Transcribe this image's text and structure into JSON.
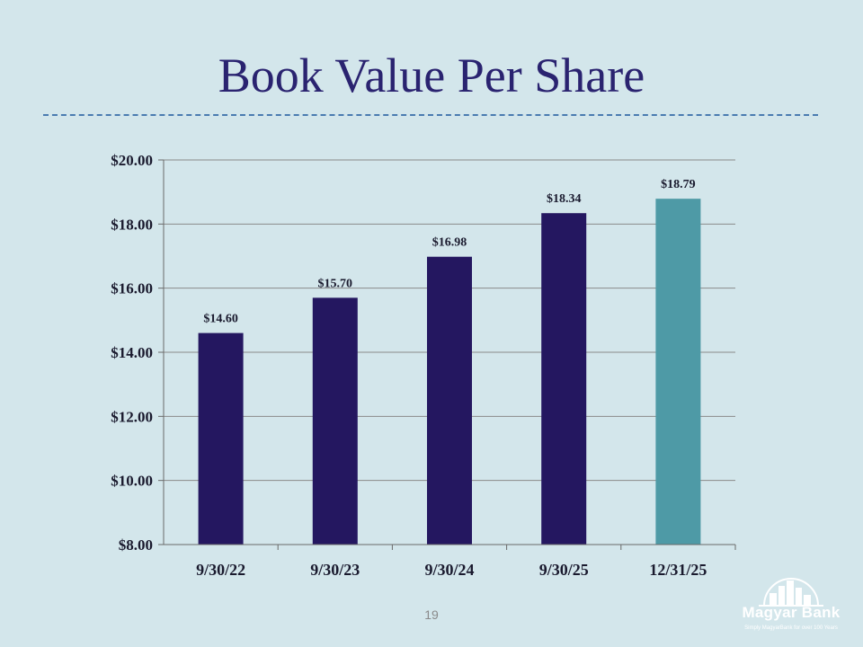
{
  "slide": {
    "title": "Book Value Per Share",
    "page_number": "19"
  },
  "logo": {
    "name": "Magyar Bank",
    "tagline": "Simply MagyarBank for over 100 Years"
  },
  "colors": {
    "background": "#d3e6eb",
    "bar_primary": "#241760",
    "bar_highlight": "#4e9aa6",
    "title": "#2a2370"
  },
  "chart_data": {
    "type": "bar",
    "title": "",
    "xlabel": "",
    "ylabel": "",
    "categories": [
      "9/30/22",
      "9/30/23",
      "9/30/24",
      "9/30/25",
      "12/31/25"
    ],
    "values": [
      14.6,
      15.7,
      16.98,
      18.34,
      18.79
    ],
    "data_labels": [
      "$14.60",
      "$15.70",
      "$16.98",
      "$18.34",
      "$18.79"
    ],
    "highlight_index": 4,
    "ylim": [
      8,
      20
    ],
    "yticks": [
      8,
      10,
      12,
      14,
      16,
      18,
      20
    ],
    "ytick_labels": [
      "$8.00",
      "$10.00",
      "$12.00",
      "$14.00",
      "$16.00",
      "$18.00",
      "$20.00"
    ],
    "grid": true,
    "legend": "none"
  }
}
